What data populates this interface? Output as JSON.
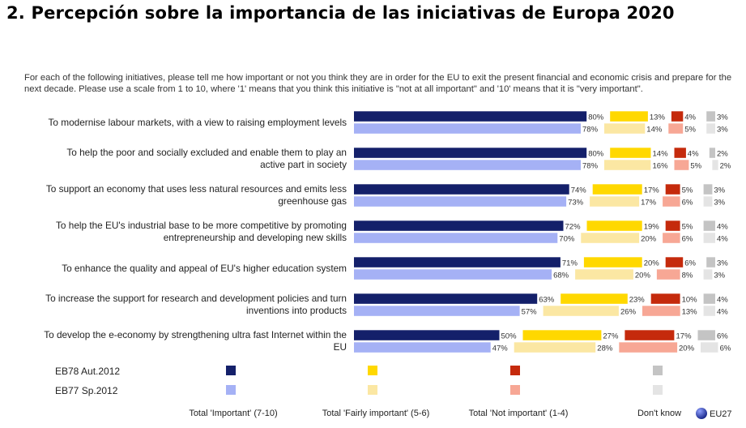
{
  "header": {
    "title": "2. Percepción sobre la importancia de las iniciativas de Europa 2020",
    "question": "For each of the following initiatives, please tell me how important or not you think they are in order for the EU to exit the present financial and economic crisis and prepare for the next decade. Please use a scale from 1 to 10, where '1' means that you think this initiative is \"not at all important\" and '10' means that it is \"very important\"."
  },
  "chart_data": {
    "type": "bar",
    "orientation": "horizontal",
    "stacked": true,
    "categories": [
      [
        "To modernise labour markets, with a view to raising employment levels"
      ],
      [
        "To help the poor and socially excluded and enable them to play an",
        "active part in society"
      ],
      [
        "To support an economy that uses less natural resources and emits less",
        "greenhouse gas"
      ],
      [
        "To help the EU's industrial base to be more competitive by promoting",
        "entrepreneurship and developing new skills"
      ],
      [
        "To enhance the quality and appeal of EU's higher education system"
      ],
      [
        "To increase the support for research and development policies and turn",
        "inventions into products"
      ],
      [
        "To develop the e-economy by strengthening ultra fast Internet within the",
        "EU"
      ]
    ],
    "waves": [
      {
        "name": "EB78 Aut.2012"
      },
      {
        "name": "EB77 Sp.2012"
      }
    ],
    "answers": [
      {
        "name": "Total 'Important' (7-10)",
        "colors": [
          "#14206a",
          "#a5b1f5"
        ]
      },
      {
        "name": "Total 'Fairly important' (5-6)",
        "colors": [
          "#ffd800",
          "#fbe7a3"
        ]
      },
      {
        "name": "Total 'Not important' (1-4)",
        "colors": [
          "#c52a0c",
          "#f7a795"
        ]
      },
      {
        "name": "Don't know",
        "colors": [
          "#c4c4c4",
          "#e4e4e4"
        ]
      }
    ],
    "values": [
      [
        [
          80,
          13,
          4,
          3
        ],
        [
          78,
          14,
          5,
          3
        ]
      ],
      [
        [
          80,
          14,
          4,
          2
        ],
        [
          78,
          16,
          5,
          2
        ]
      ],
      [
        [
          74,
          17,
          5,
          3
        ],
        [
          73,
          17,
          6,
          3
        ]
      ],
      [
        [
          72,
          19,
          5,
          4
        ],
        [
          70,
          20,
          6,
          4
        ]
      ],
      [
        [
          71,
          20,
          6,
          3
        ],
        [
          68,
          20,
          8,
          3
        ]
      ],
      [
        [
          63,
          23,
          10,
          4
        ],
        [
          57,
          26,
          13,
          4
        ]
      ],
      [
        [
          50,
          27,
          17,
          6
        ],
        [
          47,
          28,
          20,
          6
        ]
      ]
    ],
    "value_suffix": "%",
    "xlim": [
      0,
      100
    ],
    "grid": false,
    "legend_position": "bottom"
  },
  "logo": {
    "text": "EU27",
    "color": "#1b2a8c"
  }
}
